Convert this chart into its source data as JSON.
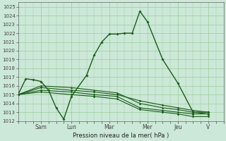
{
  "xlabel": "Pression niveau de la mer( hPa )",
  "bg_color": "#cce8d8",
  "grid_color": "#99cc99",
  "line_color": "#1a5c1a",
  "ylim": [
    1012,
    1025.5
  ],
  "ytick_vals": [
    1012,
    1013,
    1014,
    1015,
    1016,
    1017,
    1018,
    1019,
    1020,
    1021,
    1022,
    1023,
    1024,
    1025
  ],
  "xlim": [
    0,
    13.5
  ],
  "xtick_positions": [
    1.5,
    3.5,
    6.0,
    8.5,
    10.5,
    12.5
  ],
  "xtick_labels": [
    "Sam",
    "Lun",
    "Mar",
    "Mer",
    "Jeu",
    "V"
  ],
  "series1_x": [
    0.0,
    0.5,
    1.0,
    1.5,
    2.0,
    2.5,
    3.0,
    3.5,
    4.5,
    5.0,
    5.5,
    6.0,
    6.5,
    7.0,
    7.5,
    8.0,
    8.5,
    9.5,
    10.5,
    11.5,
    12.5
  ],
  "series1_y": [
    1015.0,
    1016.8,
    1016.7,
    1016.5,
    1015.5,
    1013.5,
    1012.2,
    1014.8,
    1017.2,
    1019.5,
    1021.0,
    1021.9,
    1021.9,
    1022.0,
    1022.0,
    1024.5,
    1023.3,
    1019.0,
    1016.3,
    1013.0,
    1013.0
  ],
  "series2_x": [
    0.0,
    1.5,
    3.5,
    5.0,
    6.5,
    8.0,
    9.5,
    10.5,
    11.5,
    12.5
  ],
  "series2_y": [
    1015.0,
    1015.8,
    1015.5,
    1015.3,
    1015.0,
    1014.3,
    1013.8,
    1013.5,
    1013.2,
    1013.0
  ],
  "series3_x": [
    0.0,
    1.5,
    3.5,
    5.0,
    6.5,
    8.0,
    9.5,
    10.5,
    11.5,
    12.5
  ],
  "series3_y": [
    1015.0,
    1016.0,
    1015.8,
    1015.5,
    1015.2,
    1014.0,
    1013.5,
    1013.3,
    1013.0,
    1012.8
  ],
  "series4_x": [
    0.0,
    1.5,
    3.5,
    5.0,
    6.5,
    8.0,
    9.5,
    10.5,
    11.5,
    12.5
  ],
  "series4_y": [
    1015.0,
    1015.5,
    1015.3,
    1015.0,
    1014.8,
    1013.5,
    1013.2,
    1013.0,
    1012.8,
    1012.8
  ],
  "series5_x": [
    0.0,
    1.5,
    3.5,
    5.0,
    6.5,
    8.0,
    9.5,
    10.5,
    11.5,
    12.5
  ],
  "series5_y": [
    1015.0,
    1015.3,
    1015.0,
    1014.8,
    1014.5,
    1013.3,
    1013.0,
    1012.8,
    1012.5,
    1012.5
  ]
}
